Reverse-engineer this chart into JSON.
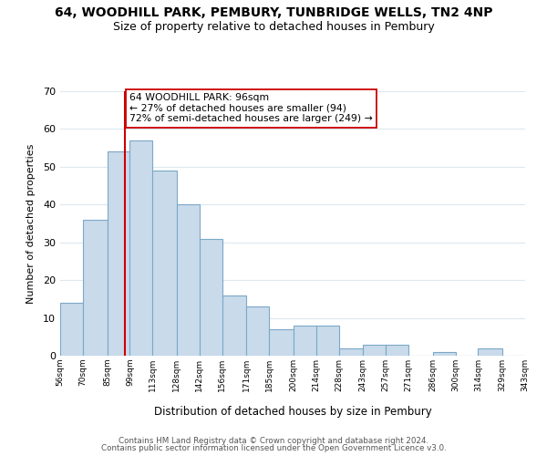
{
  "title": "64, WOODHILL PARK, PEMBURY, TUNBRIDGE WELLS, TN2 4NP",
  "subtitle": "Size of property relative to detached houses in Pembury",
  "xlabel": "Distribution of detached houses by size in Pembury",
  "ylabel": "Number of detached properties",
  "bar_edges": [
    56,
    70,
    85,
    99,
    113,
    128,
    142,
    156,
    171,
    185,
    200,
    214,
    228,
    243,
    257,
    271,
    286,
    300,
    314,
    329,
    343
  ],
  "bar_heights": [
    14,
    36,
    54,
    57,
    49,
    40,
    31,
    16,
    13,
    7,
    8,
    8,
    2,
    3,
    3,
    0,
    1,
    0,
    2,
    0
  ],
  "bar_color": "#c9daea",
  "bar_edge_color": "#7ba8c8",
  "vline_x": 96,
  "vline_color": "#cc0000",
  "annotation_line1": "64 WOODHILL PARK: 96sqm",
  "annotation_line2": "← 27% of detached houses are smaller (94)",
  "annotation_line3": "72% of semi-detached houses are larger (249) →",
  "annotation_box_color": "#ffffff",
  "annotation_box_edge_color": "#cc0000",
  "ylim": [
    0,
    70
  ],
  "yticks": [
    0,
    10,
    20,
    30,
    40,
    50,
    60,
    70
  ],
  "tick_labels": [
    "56sqm",
    "70sqm",
    "85sqm",
    "99sqm",
    "113sqm",
    "128sqm",
    "142sqm",
    "156sqm",
    "171sqm",
    "185sqm",
    "200sqm",
    "214sqm",
    "228sqm",
    "243sqm",
    "257sqm",
    "271sqm",
    "286sqm",
    "300sqm",
    "314sqm",
    "329sqm",
    "343sqm"
  ],
  "footer_line1": "Contains HM Land Registry data © Crown copyright and database right 2024.",
  "footer_line2": "Contains public sector information licensed under the Open Government Licence v3.0.",
  "background_color": "#ffffff",
  "grid_color": "#dce8f0"
}
